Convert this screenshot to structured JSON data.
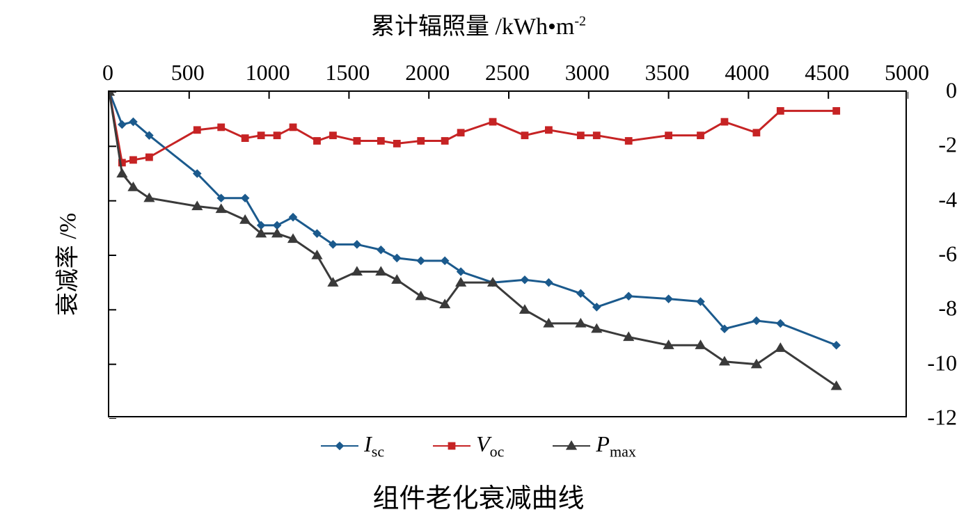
{
  "chart": {
    "type": "line",
    "top_title": "累计辐照量 /kWh•m",
    "top_title_sup": "-2",
    "y_label": "衰减率 /%",
    "bottom_title": "组件老化衰减曲线",
    "background_color": "#ffffff",
    "axis_color": "#000000",
    "title_fontsize": 34,
    "label_fontsize": 34,
    "tick_fontsize": 32,
    "bottom_title_fontsize": 38,
    "xlim": [
      0,
      5000
    ],
    "ylim": [
      -12,
      0
    ],
    "xtick_step": 500,
    "ytick_step": 2,
    "xticks": [
      0,
      500,
      1000,
      1500,
      2000,
      2500,
      3000,
      3500,
      4000,
      4500,
      5000
    ],
    "yticks": [
      0,
      -2,
      -4,
      -6,
      -8,
      -10,
      -12
    ],
    "tick_length": 10,
    "line_width": 3,
    "marker_size": 9,
    "x_values": [
      0,
      80,
      150,
      250,
      550,
      700,
      850,
      950,
      1050,
      1150,
      1300,
      1400,
      1550,
      1700,
      1800,
      1950,
      2100,
      2200,
      2400,
      2600,
      2750,
      2950,
      3050,
      3250,
      3500,
      3700,
      3850,
      4050,
      4200,
      4550
    ],
    "series": [
      {
        "name": "Isc",
        "label_main": "I",
        "label_sub": "sc",
        "color": "#1b5a8d",
        "marker": "diamond",
        "y": [
          0,
          -1.2,
          -1.1,
          -1.6,
          -3.0,
          -3.9,
          -3.9,
          -4.9,
          -4.9,
          -4.6,
          -5.2,
          -5.6,
          -5.6,
          -5.8,
          -6.1,
          -6.2,
          -6.2,
          -6.6,
          -7.0,
          -6.9,
          -7.0,
          -7.4,
          -7.9,
          -7.5,
          -7.6,
          -7.7,
          -8.7,
          -8.4,
          -8.5,
          -9.3
        ]
      },
      {
        "name": "Voc",
        "label_main": "V",
        "label_sub": "oc",
        "color": "#c62324",
        "marker": "square",
        "y": [
          0,
          -2.6,
          -2.5,
          -2.4,
          -1.4,
          -1.3,
          -1.7,
          -1.6,
          -1.6,
          -1.3,
          -1.8,
          -1.6,
          -1.8,
          -1.8,
          -1.9,
          -1.8,
          -1.8,
          -1.5,
          -1.1,
          -1.6,
          -1.4,
          -1.6,
          -1.6,
          -1.8,
          -1.6,
          -1.6,
          -1.1,
          -1.5,
          -0.7,
          -0.7
        ]
      },
      {
        "name": "Pmax",
        "label_main": "P",
        "label_sub": "max",
        "color": "#3a3a3a",
        "marker": "triangle",
        "y": [
          0,
          -3.0,
          -3.5,
          -3.9,
          -4.2,
          -4.3,
          -4.7,
          -5.2,
          -5.2,
          -5.4,
          -6.0,
          -7.0,
          -6.6,
          -6.6,
          -6.9,
          -7.5,
          -7.8,
          -7.0,
          -7.0,
          -8.0,
          -8.5,
          -8.5,
          -8.7,
          -9.0,
          -9.3,
          -9.3,
          -9.9,
          -10.0,
          -9.4,
          -10.8
        ]
      }
    ]
  }
}
